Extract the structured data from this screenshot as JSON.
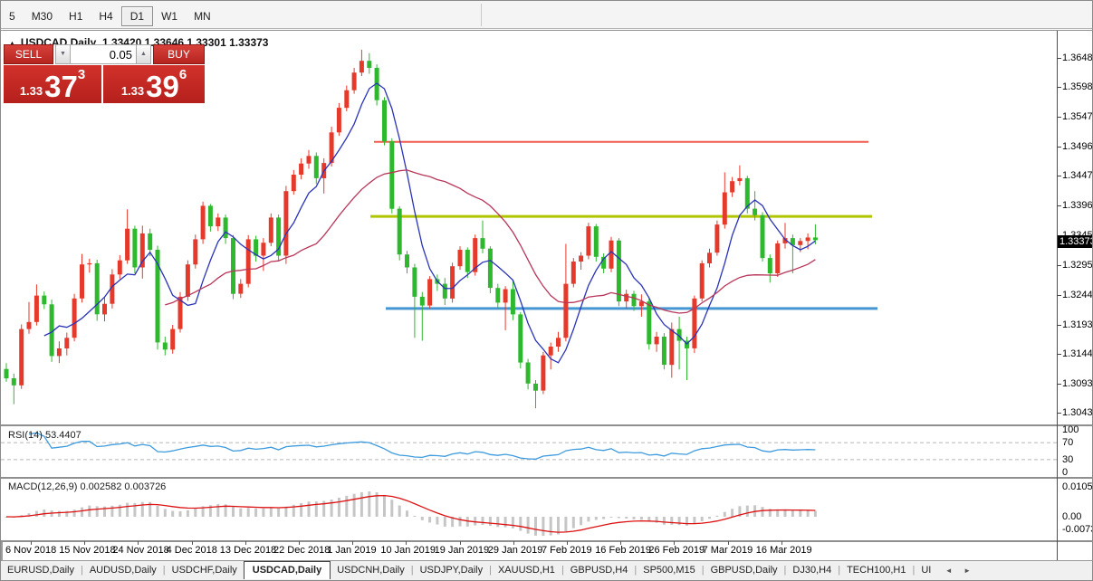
{
  "toolbar": {
    "timeframes": [
      {
        "label": "5",
        "active": false
      },
      {
        "label": "M30",
        "active": false
      },
      {
        "label": "H1",
        "active": false
      },
      {
        "label": "H4",
        "active": false
      },
      {
        "label": "D1",
        "active": true
      },
      {
        "label": "W1",
        "active": false
      },
      {
        "label": "MN",
        "active": false
      }
    ]
  },
  "chart": {
    "title": {
      "collapse_icon": "▲",
      "symbol": "USDCAD,Daily",
      "ohlc": "1.33420 1.33646 1.33301 1.33373"
    },
    "trade_panel": {
      "sell_label": "SELL",
      "buy_label": "BUY",
      "volume": "0.05",
      "spin_down": "▼",
      "spin_up": "▲",
      "sell_price": {
        "big_figure": "1.33",
        "pips": "37",
        "pipette": "3"
      },
      "buy_price": {
        "big_figure": "1.33",
        "pips": "39",
        "pipette": "6"
      }
    },
    "price_axis": {
      "current": "1.33373"
    }
  },
  "rsi_panel": {
    "label": "RSI(14)",
    "value": "53.4407"
  },
  "macd_panel": {
    "label": "MACD(12,26,9)",
    "values": "0.002582 0.003726"
  },
  "tabbar": {
    "tabs": [
      {
        "label": "EURUSD,Daily",
        "active": false
      },
      {
        "label": "AUDUSD,Daily",
        "active": false
      },
      {
        "label": "USDCHF,Daily",
        "active": false
      },
      {
        "label": "USDCAD,Daily",
        "active": true
      },
      {
        "label": "USDCNH,Daily",
        "active": false
      },
      {
        "label": "USDJPY,Daily",
        "active": false
      },
      {
        "label": "XAUUSD,H1",
        "active": false
      },
      {
        "label": "GBPUSD,H4",
        "active": false
      },
      {
        "label": "SP500,M15",
        "active": false
      },
      {
        "label": "GBPUSD,Daily",
        "active": false
      },
      {
        "label": "DJ30,H4",
        "active": false
      },
      {
        "label": "TECH100,H1",
        "active": false
      },
      {
        "label": "UI",
        "active": false
      }
    ],
    "scroll_left": "◄",
    "scroll_right": "►"
  },
  "chart_data": {
    "type": "candlestick",
    "symbol": "USDCAD",
    "period": "Daily",
    "ohlc_current": {
      "open": 1.3342,
      "high": 1.33646,
      "low": 1.33301,
      "close": 1.33373
    },
    "y_ticks": [
      "1.36480",
      "1.35985",
      "1.35475",
      "1.34965",
      "1.34470",
      "1.33960",
      "1.33450",
      "1.32955",
      "1.32445",
      "1.31935",
      "1.31440",
      "1.30930",
      "1.30435"
    ],
    "x_labels": [
      "6 Nov 2018",
      "15 Nov 2018",
      "24 Nov 2018",
      "4 Dec 2018",
      "13 Dec 2018",
      "22 Dec 2018",
      "1 Jan 2019",
      "10 Jan 2019",
      "19 Jan 2019",
      "29 Jan 2019",
      "7 Feb 2019",
      "16 Feb 2019",
      "26 Feb 2019",
      "7 Mar 2019",
      "16 Mar 2019"
    ],
    "hlines": [
      {
        "price": 1.3505,
        "color": "#f25b50",
        "width": 2,
        "x1": 412,
        "x2": 958
      },
      {
        "price": 1.3378,
        "color": "#b0c400",
        "width": 3,
        "x1": 408,
        "x2": 962
      },
      {
        "price": 1.3221,
        "color": "#4596d2",
        "width": 3,
        "x1": 425,
        "x2": 968
      }
    ],
    "indicators": {
      "rsi": {
        "label": "RSI(14)",
        "value": 53.4407,
        "levels": [
          100,
          70,
          30,
          0
        ],
        "color": "#3e9bdd"
      },
      "macd": {
        "label": "MACD(12,26,9)",
        "main": 0.002582,
        "signal": 0.003726,
        "ticks": [
          0.010525,
          0.0,
          -0.0073
        ],
        "bar_color": "#c6c6c6",
        "signal_color": "#dd1111"
      }
    },
    "ma_fast_period": 6,
    "ma_slow_period": 22,
    "colors": {
      "up": "#e53a2b",
      "down": "#2eb82e",
      "ma_fast": "#2a33b8",
      "ma_slow": "#b8365a"
    },
    "y_map": {
      "p0": 1.3648,
      "y0": 30,
      "scale": 6484
    },
    "x0": 6,
    "dx": 8.35,
    "candles": [
      [
        1.3118,
        1.3128,
        1.3096,
        1.3102
      ],
      [
        1.3102,
        1.311,
        1.3058,
        1.309
      ],
      [
        1.309,
        1.3194,
        1.3084,
        1.3186
      ],
      [
        1.3186,
        1.3232,
        1.3178,
        1.3198
      ],
      [
        1.3198,
        1.3262,
        1.3192,
        1.3243
      ],
      [
        1.3243,
        1.325,
        1.322,
        1.3228
      ],
      [
        1.3228,
        1.3236,
        1.313,
        1.314
      ],
      [
        1.314,
        1.3165,
        1.3128,
        1.3153
      ],
      [
        1.3153,
        1.318,
        1.3141,
        1.3171
      ],
      [
        1.3171,
        1.3246,
        1.3165,
        1.3238
      ],
      [
        1.3238,
        1.3314,
        1.3231,
        1.3296
      ],
      [
        1.3296,
        1.3306,
        1.3282,
        1.3298
      ],
      [
        1.3298,
        1.3304,
        1.32,
        1.3211
      ],
      [
        1.3211,
        1.324,
        1.3199,
        1.3229
      ],
      [
        1.3229,
        1.3288,
        1.3221,
        1.3279
      ],
      [
        1.3279,
        1.3312,
        1.3271,
        1.3303
      ],
      [
        1.3303,
        1.339,
        1.3297,
        1.3357
      ],
      [
        1.3357,
        1.3362,
        1.3281,
        1.3291
      ],
      [
        1.3291,
        1.3362,
        1.3272,
        1.3349
      ],
      [
        1.3349,
        1.3357,
        1.331,
        1.3321
      ],
      [
        1.3321,
        1.3328,
        1.3151,
        1.3163
      ],
      [
        1.3163,
        1.3173,
        1.3141,
        1.3151
      ],
      [
        1.3151,
        1.3193,
        1.3144,
        1.3186
      ],
      [
        1.3186,
        1.3249,
        1.318,
        1.3241
      ],
      [
        1.3241,
        1.3303,
        1.3234,
        1.3296
      ],
      [
        1.3296,
        1.3347,
        1.3289,
        1.3339
      ],
      [
        1.3339,
        1.3403,
        1.3331,
        1.3396
      ],
      [
        1.3396,
        1.3399,
        1.3352,
        1.3361
      ],
      [
        1.3361,
        1.3383,
        1.3353,
        1.3376
      ],
      [
        1.3376,
        1.3381,
        1.3331,
        1.3341
      ],
      [
        1.3341,
        1.3346,
        1.3237,
        1.3246
      ],
      [
        1.3246,
        1.3271,
        1.3239,
        1.3263
      ],
      [
        1.3263,
        1.3346,
        1.3257,
        1.3339
      ],
      [
        1.3339,
        1.3345,
        1.3301,
        1.3311
      ],
      [
        1.3311,
        1.3341,
        1.3285,
        1.3333
      ],
      [
        1.3333,
        1.3383,
        1.3327,
        1.3376
      ],
      [
        1.3376,
        1.3381,
        1.3301,
        1.3311
      ],
      [
        1.3311,
        1.343,
        1.3297,
        1.3421
      ],
      [
        1.3421,
        1.3457,
        1.3415,
        1.3449
      ],
      [
        1.3449,
        1.3477,
        1.3441,
        1.3468
      ],
      [
        1.3468,
        1.3491,
        1.3459,
        1.3481
      ],
      [
        1.3481,
        1.3487,
        1.3433,
        1.3443
      ],
      [
        1.3443,
        1.3477,
        1.3417,
        1.3469
      ],
      [
        1.3469,
        1.3531,
        1.3463,
        1.3521
      ],
      [
        1.3521,
        1.3571,
        1.3515,
        1.3563
      ],
      [
        1.3563,
        1.3601,
        1.3557,
        1.3593
      ],
      [
        1.3593,
        1.3631,
        1.3587,
        1.3623
      ],
      [
        1.3623,
        1.3662,
        1.3617,
        1.3643
      ],
      [
        1.3643,
        1.3656,
        1.3621,
        1.3631
      ],
      [
        1.3631,
        1.3637,
        1.3567,
        1.3576
      ],
      [
        1.3576,
        1.3581,
        1.3499,
        1.3506
      ],
      [
        1.3506,
        1.3511,
        1.3383,
        1.3391
      ],
      [
        1.3391,
        1.3395,
        1.3303,
        1.3313
      ],
      [
        1.3313,
        1.3319,
        1.3281,
        1.3291
      ],
      [
        1.3291,
        1.3297,
        1.3171,
        1.3241
      ],
      [
        1.3241,
        1.3249,
        1.3166,
        1.3226
      ],
      [
        1.3226,
        1.3276,
        1.3221,
        1.3271
      ],
      [
        1.3271,
        1.3279,
        1.3251,
        1.3263
      ],
      [
        1.3263,
        1.3273,
        1.3227,
        1.3238
      ],
      [
        1.3238,
        1.3299,
        1.3231,
        1.3293
      ],
      [
        1.3293,
        1.3327,
        1.3287,
        1.3321
      ],
      [
        1.3321,
        1.3325,
        1.3273,
        1.3283
      ],
      [
        1.3283,
        1.3347,
        1.3277,
        1.3341
      ],
      [
        1.3341,
        1.3371,
        1.3315,
        1.3323
      ],
      [
        1.3323,
        1.3327,
        1.3247,
        1.3256
      ],
      [
        1.3256,
        1.3263,
        1.3221,
        1.3231
      ],
      [
        1.3231,
        1.3259,
        1.3184,
        1.3254
      ],
      [
        1.3254,
        1.3269,
        1.3201,
        1.3211
      ],
      [
        1.3211,
        1.3215,
        1.3119,
        1.3129
      ],
      [
        1.3129,
        1.3135,
        1.3083,
        1.3093
      ],
      [
        1.3093,
        1.3099,
        1.3051,
        1.3081
      ],
      [
        1.3081,
        1.3147,
        1.3075,
        1.3141
      ],
      [
        1.3141,
        1.3163,
        1.3117,
        1.3156
      ],
      [
        1.3156,
        1.3181,
        1.3147,
        1.3171
      ],
      [
        1.3171,
        1.3331,
        1.3165,
        1.3263
      ],
      [
        1.3263,
        1.3307,
        1.3257,
        1.3301
      ],
      [
        1.3301,
        1.3317,
        1.3287,
        1.3311
      ],
      [
        1.3311,
        1.3367,
        1.3305,
        1.3361
      ],
      [
        1.3361,
        1.3365,
        1.3301,
        1.3309
      ],
      [
        1.3309,
        1.3315,
        1.3281,
        1.3289
      ],
      [
        1.3289,
        1.3343,
        1.3283,
        1.3337
      ],
      [
        1.3337,
        1.3341,
        1.3225,
        1.3233
      ],
      [
        1.3233,
        1.3253,
        1.3221,
        1.3246
      ],
      [
        1.3246,
        1.3251,
        1.3217,
        1.3225
      ],
      [
        1.3225,
        1.3245,
        1.3207,
        1.3233
      ],
      [
        1.3233,
        1.3239,
        1.3151,
        1.316
      ],
      [
        1.316,
        1.3181,
        1.3147,
        1.3173
      ],
      [
        1.3173,
        1.3179,
        1.3117,
        1.3125
      ],
      [
        1.3125,
        1.3197,
        1.3103,
        1.3186
      ],
      [
        1.3186,
        1.3207,
        1.3117,
        1.3166
      ],
      [
        1.3166,
        1.3173,
        1.3099,
        1.3153
      ],
      [
        1.3153,
        1.3243,
        1.3145,
        1.3238
      ],
      [
        1.3238,
        1.3303,
        1.3233,
        1.3298
      ],
      [
        1.3298,
        1.3323,
        1.3291,
        1.3316
      ],
      [
        1.3316,
        1.3371,
        1.3311,
        1.3364
      ],
      [
        1.3364,
        1.3453,
        1.3357,
        1.3419
      ],
      [
        1.3419,
        1.3445,
        1.3411,
        1.3438
      ],
      [
        1.3438,
        1.3465,
        1.3431,
        1.3443
      ],
      [
        1.3443,
        1.3447,
        1.3383,
        1.3391
      ],
      [
        1.3391,
        1.3421,
        1.3371,
        1.338
      ],
      [
        1.338,
        1.3385,
        1.3301,
        1.3307
      ],
      [
        1.3307,
        1.3313,
        1.3265,
        1.3281
      ],
      [
        1.3281,
        1.3337,
        1.3275,
        1.3332
      ],
      [
        1.3332,
        1.3367,
        1.3323,
        1.3341
      ],
      [
        1.3341,
        1.3347,
        1.3281,
        1.3329
      ],
      [
        1.3329,
        1.3341,
        1.3317,
        1.3336
      ],
      [
        1.3336,
        1.3349,
        1.3322,
        1.3342
      ],
      [
        1.3342,
        1.33646,
        1.33301,
        1.33373
      ]
    ]
  }
}
